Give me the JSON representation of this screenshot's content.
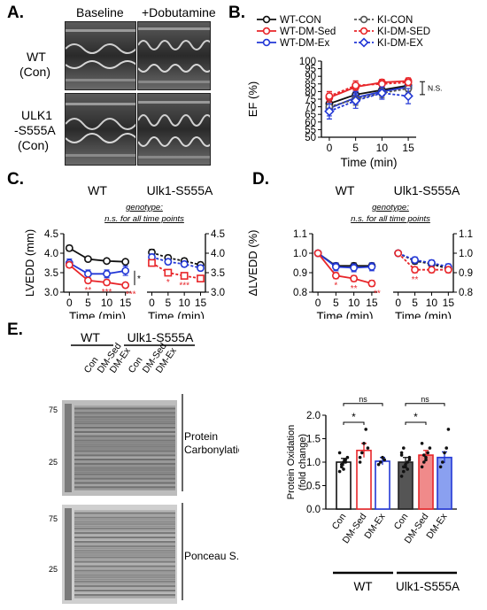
{
  "panels": {
    "a": {
      "label": "A.",
      "col_headers": [
        "Baseline",
        "+Dobutamine"
      ],
      "row_labels": [
        [
          "WT",
          "(Con)"
        ],
        [
          "ULK1",
          "-S555A",
          "(Con)"
        ]
      ]
    },
    "b": {
      "label": "B."
    },
    "c": {
      "label": "C."
    },
    "d": {
      "label": "D."
    },
    "e": {
      "label": "E.",
      "blot_group_labels": [
        "WT",
        "Ulk1-S555A"
      ],
      "lane_labels": [
        "Con",
        "DM-Sed",
        "DM-Ex",
        "Con",
        "DM-Sed",
        "DM-Ex"
      ],
      "ladder_top": [
        "75",
        "25"
      ],
      "ladder_bottom": [
        "75",
        "25"
      ],
      "blot_labels": {
        "carbonyl": [
          "Protein",
          "Carbonylation"
        ],
        "ponceau": "Ponceau S."
      }
    }
  },
  "colors": {
    "black": "#111111",
    "red": "#e8262a",
    "blue": "#2338d6",
    "ko_gray": "#555555",
    "red_fill": "#f08a8a",
    "blue_fill": "#8aa0f0"
  },
  "chart_data": [
    {
      "id": "B",
      "type": "line",
      "ylabel": "EF (%)",
      "xlabel": "Time (min)",
      "x": [
        0,
        5,
        10,
        15
      ],
      "xlim": [
        -1.5,
        16.5
      ],
      "ylim": [
        50,
        100
      ],
      "yticks": [
        50,
        55,
        60,
        65,
        70,
        75,
        80,
        85,
        90,
        95,
        100
      ],
      "annotation": "N.S.",
      "legend": [
        "WT-CON",
        "KI-CON",
        "WT-DM-Sed",
        "KI-DM-SED",
        "WT-DM-Ex",
        "KI-DM-EX"
      ],
      "series": [
        {
          "name": "WT-CON",
          "values": [
            72,
            78,
            81,
            84
          ],
          "err": [
            4,
            3,
            3,
            3
          ],
          "color": "black",
          "dash": false,
          "marker": "o"
        },
        {
          "name": "WT-DM-Sed",
          "values": [
            76,
            83,
            86,
            87
          ],
          "err": [
            3,
            3,
            2,
            2
          ],
          "color": "red",
          "dash": false,
          "marker": "o"
        },
        {
          "name": "WT-DM-Ex",
          "values": [
            69,
            76,
            80,
            83
          ],
          "err": [
            5,
            4,
            3,
            3
          ],
          "color": "blue",
          "dash": false,
          "marker": "o"
        },
        {
          "name": "KI-CON",
          "values": [
            70,
            75,
            79,
            82
          ],
          "err": [
            4,
            4,
            3,
            3
          ],
          "color": "ko_gray",
          "dash": true,
          "marker": "o"
        },
        {
          "name": "KI-DM-SED",
          "values": [
            77,
            84,
            85,
            86
          ],
          "err": [
            3,
            3,
            2,
            2
          ],
          "color": "red",
          "dash": true,
          "marker": "o"
        },
        {
          "name": "KI-DM-EX",
          "values": [
            67,
            74,
            79,
            77
          ],
          "err": [
            5,
            5,
            4,
            5
          ],
          "color": "blue",
          "dash": true,
          "marker": "d"
        }
      ]
    },
    {
      "id": "C",
      "type": "line",
      "ylabel": "LVEDD (mm)",
      "xlabel": "Time (min)",
      "titles": [
        "WT",
        "Ulk1-S555A"
      ],
      "note": [
        "genotype:",
        "n.s. for all time points"
      ],
      "x": [
        0,
        5,
        10,
        15
      ],
      "xlim": [
        -1.5,
        16.5
      ],
      "ylim": [
        3.0,
        4.5
      ],
      "yticks": [
        "3.0",
        "3.5",
        "4.0",
        "4.5"
      ],
      "wt_stars": [
        "**",
        "***",
        "***"
      ],
      "wt_side_star": "*",
      "ki_stars": [
        "*",
        "***"
      ],
      "left": [
        {
          "name": "WT-CON",
          "values": [
            4.13,
            3.85,
            3.8,
            3.78
          ],
          "err": [
            0.07,
            0.05,
            0.05,
            0.05
          ],
          "color": "black",
          "dash": false,
          "marker": "o"
        },
        {
          "name": "WT-DM-Ex",
          "values": [
            3.75,
            3.47,
            3.47,
            3.55
          ],
          "err": [
            0.1,
            0.1,
            0.1,
            0.12
          ],
          "color": "blue",
          "dash": false,
          "marker": "o"
        },
        {
          "name": "WT-DM-Sed",
          "values": [
            3.7,
            3.3,
            3.25,
            3.18
          ],
          "err": [
            0.07,
            0.07,
            0.07,
            0.06
          ],
          "color": "red",
          "dash": false,
          "marker": "o"
        }
      ],
      "right": [
        {
          "name": "KI-CON",
          "values": [
            4.02,
            3.88,
            3.8,
            3.7
          ],
          "err": [
            0.08,
            0.07,
            0.07,
            0.07
          ],
          "color": "black",
          "dash": true,
          "marker": "o"
        },
        {
          "name": "KI-DM-EX",
          "values": [
            3.9,
            3.78,
            3.72,
            3.62
          ],
          "err": [
            0.08,
            0.07,
            0.07,
            0.07
          ],
          "color": "blue",
          "dash": true,
          "marker": "o"
        },
        {
          "name": "KI-DM-SED",
          "values": [
            3.75,
            3.5,
            3.42,
            3.35
          ],
          "err": [
            0.08,
            0.07,
            0.07,
            0.06
          ],
          "color": "red",
          "dash": true,
          "marker": "s"
        }
      ]
    },
    {
      "id": "D",
      "type": "line",
      "ylabel": "ΔLVEDD (%)",
      "xlabel": "Time (min)",
      "titles": [
        "WT",
        "Ulk1-S555A"
      ],
      "note": [
        "genotype:",
        "n.s. for all time points"
      ],
      "x": [
        0,
        5,
        10,
        15
      ],
      "xlim": [
        -1.5,
        16.5
      ],
      "ylim": [
        0.8,
        1.1
      ],
      "yticks": [
        "0.8",
        "0.9",
        "1.0",
        "1.1"
      ],
      "wt_stars": [
        "*",
        "**",
        "**"
      ],
      "ki_stars": [
        "**"
      ],
      "left": [
        {
          "name": "WT-CON",
          "values": [
            1.0,
            0.935,
            0.935,
            0.935
          ],
          "err": [
            0,
            0.015,
            0.015,
            0.015
          ],
          "color": "black",
          "dash": false,
          "marker": "o"
        },
        {
          "name": "WT-DM-Ex",
          "values": [
            1.0,
            0.93,
            0.925,
            0.93
          ],
          "err": [
            0,
            0.02,
            0.02,
            0.02
          ],
          "color": "blue",
          "dash": false,
          "marker": "o"
        },
        {
          "name": "WT-DM-Sed",
          "values": [
            1.0,
            0.885,
            0.87,
            0.845
          ],
          "err": [
            0,
            0.015,
            0.015,
            0.015
          ],
          "color": "red",
          "dash": false,
          "marker": "o"
        }
      ],
      "right": [
        {
          "name": "KI-CON",
          "values": [
            1.0,
            0.96,
            0.945,
            0.92
          ],
          "err": [
            0,
            0.015,
            0.015,
            0.015
          ],
          "color": "black",
          "dash": true,
          "marker": "o"
        },
        {
          "name": "KI-DM-EX",
          "values": [
            1.0,
            0.965,
            0.95,
            0.93
          ],
          "err": [
            0,
            0.015,
            0.015,
            0.015
          ],
          "color": "blue",
          "dash": true,
          "marker": "o"
        },
        {
          "name": "KI-DM-SED",
          "values": [
            1.0,
            0.915,
            0.915,
            0.915
          ],
          "err": [
            0,
            0.015,
            0.015,
            0.015
          ],
          "color": "red",
          "dash": true,
          "marker": "o"
        }
      ]
    },
    {
      "id": "E",
      "type": "bar",
      "ylabel": "Protein Oxidation (fold change)",
      "categories": [
        "Con",
        "DM-Sed",
        "DM-Ex",
        "Con",
        "DM-Sed",
        "DM-Ex"
      ],
      "groups": [
        "WT",
        "Ulk1-S555A"
      ],
      "values": [
        1.0,
        1.25,
        1.02,
        1.0,
        1.15,
        1.1
      ],
      "err": [
        0.08,
        0.15,
        0.08,
        0.1,
        0.1,
        0.12
      ],
      "ylim": [
        0,
        2.0
      ],
      "yticks": [
        "0.0",
        "0.5",
        "1.0",
        "1.5",
        "2.0"
      ],
      "significance": [
        {
          "from": 0,
          "to": 1,
          "label": "*"
        },
        {
          "from": 0,
          "to": 2,
          "label": "ns"
        },
        {
          "from": 3,
          "to": 4,
          "label": "*"
        },
        {
          "from": 3,
          "to": 5,
          "label": "ns"
        }
      ],
      "bar_styles": [
        "white-black",
        "white-red",
        "white-blue",
        "gray",
        "red_fill",
        "blue_fill"
      ],
      "points": [
        [
          0.8,
          0.9,
          1.0,
          1.05,
          1.1,
          1.2,
          0.95,
          0.85,
          1.0
        ],
        [
          1.0,
          1.2,
          1.4,
          1.7,
          1.3,
          1.1
        ],
        [
          0.95,
          1.0,
          1.1,
          1.05
        ],
        [
          0.7,
          0.8,
          0.9,
          1.0,
          1.1,
          1.2,
          1.3,
          0.95,
          0.85,
          1.05,
          1.15,
          0.9
        ],
        [
          0.9,
          1.0,
          1.1,
          1.2,
          1.3,
          1.4,
          1.15,
          1.05
        ],
        [
          0.9,
          1.0,
          1.2,
          1.3,
          1.7
        ]
      ]
    }
  ]
}
